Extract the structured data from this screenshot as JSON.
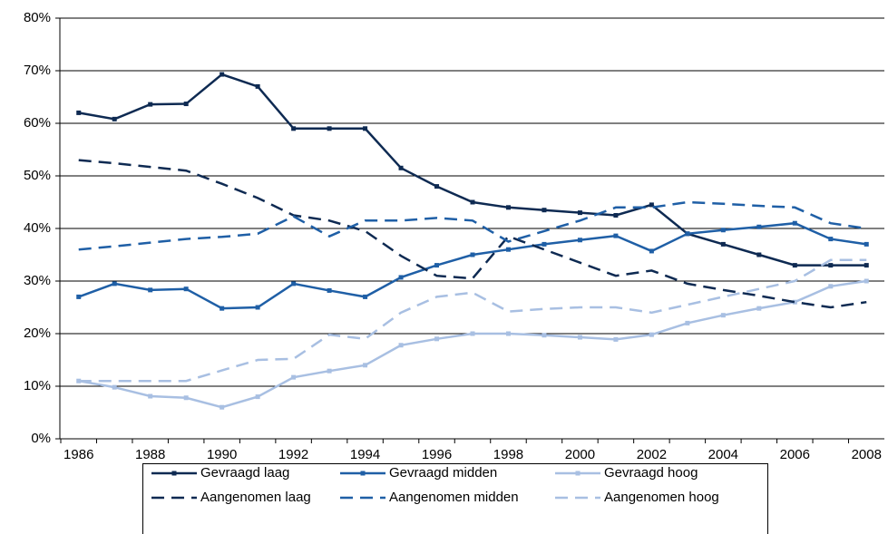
{
  "chart_data": {
    "type": "line",
    "categories": [
      "1986",
      null,
      "1988",
      null,
      "1990",
      null,
      "1992",
      null,
      "1994",
      null,
      "1996",
      null,
      "1998",
      null,
      "2000",
      null,
      "2002",
      null,
      "2004",
      null,
      "2006",
      null,
      "2008"
    ],
    "ylim": [
      0,
      80
    ],
    "yticks": [
      {
        "value": 0,
        "label": "0%"
      },
      {
        "value": 10,
        "label": "10%"
      },
      {
        "value": 20,
        "label": "20%"
      },
      {
        "value": 30,
        "label": "30%"
      },
      {
        "value": 40,
        "label": "40%"
      },
      {
        "value": 50,
        "label": "50%"
      },
      {
        "value": 60,
        "label": "60%"
      },
      {
        "value": 70,
        "label": "70%"
      },
      {
        "value": 80,
        "label": "80%"
      }
    ],
    "grid": true,
    "legend": "bottom",
    "series": [
      {
        "name": "Gevraagd laag",
        "color": "#0e2a52",
        "dashed": false,
        "markers": true,
        "values": [
          62,
          60.8,
          63.6,
          63.7,
          69.3,
          67,
          59,
          59,
          59,
          51.5,
          48,
          45,
          44,
          43.5,
          43,
          42.5,
          44.5,
          39,
          37,
          35,
          33,
          33,
          33
        ]
      },
      {
        "name": "Gevraagd midden",
        "color": "#1f5fa6",
        "dashed": false,
        "markers": true,
        "values": [
          27,
          29.5,
          28.3,
          28.5,
          24.8,
          25,
          29.5,
          28.2,
          27,
          30.7,
          33,
          35,
          36,
          37,
          37.8,
          38.6,
          35.7,
          39,
          39.7,
          40.3,
          41,
          38,
          37
        ]
      },
      {
        "name": "Gevraagd hoog",
        "color": "#a8bfe2",
        "dashed": false,
        "markers": true,
        "values": [
          11,
          9.8,
          8.1,
          7.8,
          6,
          8,
          11.7,
          12.9,
          14,
          17.8,
          19,
          20,
          20,
          19.7,
          19.3,
          18.9,
          19.8,
          22,
          23.5,
          24.8,
          26,
          29,
          30
        ]
      },
      {
        "name": "Aangenomen laag",
        "color": "#0e2a52",
        "dashed": true,
        "markers": false,
        "values": [
          53,
          52.4,
          51.7,
          51,
          48.5,
          45.8,
          42.5,
          41.5,
          39.5,
          34.8,
          31,
          30.5,
          38.5,
          36,
          33.5,
          31,
          32,
          29.5,
          28.3,
          27.2,
          26,
          25,
          26
        ]
      },
      {
        "name": "Aangenomen midden",
        "color": "#1f5fa6",
        "dashed": true,
        "markers": false,
        "values": [
          36,
          36.6,
          37.3,
          38,
          38.4,
          39,
          42.3,
          38.5,
          41.5,
          41.5,
          42,
          41.5,
          37.5,
          39.5,
          41.5,
          44,
          44,
          45,
          44.7,
          44.3,
          44,
          41,
          40
        ]
      },
      {
        "name": "Aangenomen hoog",
        "color": "#a8bfe2",
        "dashed": true,
        "markers": false,
        "values": [
          11,
          11,
          11,
          11,
          13,
          15,
          15.2,
          19.8,
          19,
          24,
          27,
          27.8,
          24.2,
          24.7,
          25,
          25,
          24,
          25.5,
          27,
          28.5,
          30,
          34,
          34
        ]
      }
    ]
  }
}
